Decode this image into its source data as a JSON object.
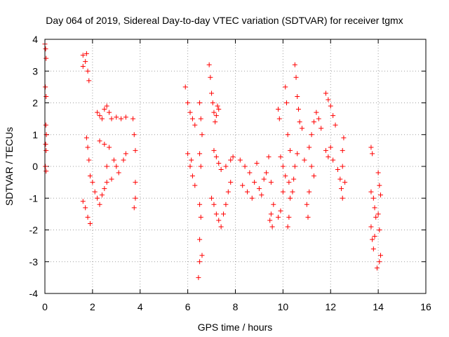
{
  "chart_data": {
    "type": "scatter",
    "title": "Day 064 of 2019, Sidereal Day-to-day VTEC variation (SDTVAR) for receiver tgmx",
    "xlabel": "GPS time / hours",
    "ylabel": "SDTVAR / TECUs",
    "xlim": [
      0,
      16
    ],
    "ylim": [
      -4,
      4
    ],
    "x_ticks": [
      0,
      2,
      4,
      6,
      8,
      10,
      12,
      14,
      16
    ],
    "y_ticks": [
      -4,
      -3,
      -2,
      -1,
      0,
      1,
      2,
      3,
      4
    ],
    "grid": true,
    "marker": "+",
    "color": "#ff0000",
    "series": [
      {
        "name": "SDTVAR",
        "points": [
          [
            0.0,
            3.85
          ],
          [
            0.03,
            3.7
          ],
          [
            0.05,
            3.4
          ],
          [
            0.02,
            2.5
          ],
          [
            0.05,
            2.2
          ],
          [
            0.04,
            1.3
          ],
          [
            0.06,
            1.0
          ],
          [
            0.03,
            0.7
          ],
          [
            0.05,
            0.5
          ],
          [
            0.02,
            0.0
          ],
          [
            0.05,
            -0.15
          ],
          [
            1.6,
            3.5
          ],
          [
            1.7,
            3.3
          ],
          [
            1.8,
            3.0
          ],
          [
            1.85,
            2.7
          ],
          [
            1.6,
            3.15
          ],
          [
            1.75,
            3.55
          ],
          [
            1.6,
            -1.1
          ],
          [
            1.7,
            -1.3
          ],
          [
            1.8,
            -1.6
          ],
          [
            1.9,
            -1.8
          ],
          [
            1.75,
            0.9
          ],
          [
            1.8,
            0.6
          ],
          [
            1.85,
            0.2
          ],
          [
            1.9,
            -0.3
          ],
          [
            2.0,
            -0.5
          ],
          [
            2.1,
            -0.8
          ],
          [
            2.2,
            -1.0
          ],
          [
            2.3,
            -1.2
          ],
          [
            2.4,
            -0.9
          ],
          [
            2.5,
            -0.7
          ],
          [
            2.6,
            -0.5
          ],
          [
            2.2,
            1.7
          ],
          [
            2.3,
            1.6
          ],
          [
            2.4,
            1.5
          ],
          [
            2.5,
            1.8
          ],
          [
            2.6,
            1.9
          ],
          [
            2.7,
            1.7
          ],
          [
            2.8,
            1.5
          ],
          [
            3.0,
            1.55
          ],
          [
            3.2,
            1.5
          ],
          [
            3.4,
            1.55
          ],
          [
            2.3,
            0.8
          ],
          [
            2.5,
            0.7
          ],
          [
            2.7,
            0.6
          ],
          [
            2.9,
            0.2
          ],
          [
            3.0,
            0.0
          ],
          [
            3.1,
            -0.2
          ],
          [
            3.3,
            0.2
          ],
          [
            3.4,
            0.4
          ],
          [
            2.6,
            0.0
          ],
          [
            2.8,
            -0.4
          ],
          [
            3.7,
            1.5
          ],
          [
            3.75,
            1.0
          ],
          [
            3.8,
            0.5
          ],
          [
            3.8,
            -0.5
          ],
          [
            3.8,
            -1.0
          ],
          [
            3.75,
            -1.3
          ],
          [
            5.9,
            2.5
          ],
          [
            6.0,
            2.0
          ],
          [
            6.1,
            1.7
          ],
          [
            6.2,
            1.5
          ],
          [
            6.3,
            1.3
          ],
          [
            6.0,
            0.4
          ],
          [
            6.1,
            0.0
          ],
          [
            6.2,
            -0.3
          ],
          [
            6.3,
            -0.6
          ],
          [
            6.15,
            0.2
          ],
          [
            6.5,
            2.0
          ],
          [
            6.55,
            1.5
          ],
          [
            6.6,
            1.0
          ],
          [
            6.5,
            0.4
          ],
          [
            6.55,
            0.0
          ],
          [
            6.5,
            -1.2
          ],
          [
            6.55,
            -1.6
          ],
          [
            6.5,
            -2.3
          ],
          [
            6.6,
            -2.8
          ],
          [
            6.5,
            -3.0
          ],
          [
            6.45,
            -3.5
          ],
          [
            6.9,
            3.2
          ],
          [
            6.95,
            2.8
          ],
          [
            7.0,
            2.3
          ],
          [
            7.05,
            2.0
          ],
          [
            7.1,
            1.7
          ],
          [
            7.2,
            1.6
          ],
          [
            7.3,
            1.8
          ],
          [
            7.15,
            1.4
          ],
          [
            7.25,
            1.9
          ],
          [
            7.0,
            -1.0
          ],
          [
            7.1,
            -1.2
          ],
          [
            7.2,
            -1.5
          ],
          [
            7.3,
            -1.7
          ],
          [
            7.4,
            -1.9
          ],
          [
            7.5,
            -1.5
          ],
          [
            7.6,
            -1.2
          ],
          [
            7.7,
            -0.8
          ],
          [
            7.8,
            -0.5
          ],
          [
            7.1,
            0.5
          ],
          [
            7.2,
            0.3
          ],
          [
            7.3,
            0.1
          ],
          [
            7.4,
            -0.1
          ],
          [
            7.6,
            0.0
          ],
          [
            7.8,
            0.2
          ],
          [
            7.9,
            0.3
          ],
          [
            8.2,
            0.2
          ],
          [
            8.4,
            0.0
          ],
          [
            8.6,
            -0.2
          ],
          [
            8.8,
            -0.5
          ],
          [
            9.0,
            -0.7
          ],
          [
            9.2,
            -0.4
          ],
          [
            8.3,
            -0.6
          ],
          [
            8.5,
            -0.8
          ],
          [
            8.7,
            -1.0
          ],
          [
            9.1,
            -0.9
          ],
          [
            9.3,
            -0.2
          ],
          [
            8.9,
            0.1
          ],
          [
            9.4,
            0.3
          ],
          [
            9.5,
            -0.5
          ],
          [
            9.5,
            -1.5
          ],
          [
            9.55,
            -1.9
          ],
          [
            9.45,
            -1.7
          ],
          [
            9.6,
            -1.2
          ],
          [
            9.8,
            1.8
          ],
          [
            9.85,
            1.5
          ],
          [
            9.9,
            0.3
          ],
          [
            10.0,
            0.0
          ],
          [
            10.1,
            -0.3
          ],
          [
            10.0,
            -0.8
          ],
          [
            9.9,
            -1.4
          ],
          [
            9.8,
            -1.6
          ],
          [
            10.1,
            2.5
          ],
          [
            10.15,
            2.0
          ],
          [
            10.2,
            1.0
          ],
          [
            10.3,
            0.5
          ],
          [
            10.25,
            -0.5
          ],
          [
            10.3,
            -1.0
          ],
          [
            10.25,
            -1.6
          ],
          [
            10.2,
            -1.9
          ],
          [
            10.5,
            3.2
          ],
          [
            10.55,
            2.8
          ],
          [
            10.6,
            2.2
          ],
          [
            10.65,
            1.8
          ],
          [
            10.7,
            1.4
          ],
          [
            10.8,
            1.2
          ],
          [
            10.5,
            0.0
          ],
          [
            10.45,
            -0.4
          ],
          [
            10.4,
            -0.8
          ],
          [
            10.6,
            0.4
          ],
          [
            10.9,
            0.2
          ],
          [
            11.1,
            0.6
          ],
          [
            11.2,
            1.0
          ],
          [
            11.3,
            1.4
          ],
          [
            11.4,
            1.7
          ],
          [
            11.5,
            1.5
          ],
          [
            11.6,
            1.2
          ],
          [
            11.2,
            0.0
          ],
          [
            11.3,
            -0.3
          ],
          [
            11.1,
            -0.8
          ],
          [
            11.0,
            -1.2
          ],
          [
            11.05,
            -1.6
          ],
          [
            11.8,
            2.3
          ],
          [
            11.9,
            2.1
          ],
          [
            12.0,
            1.9
          ],
          [
            12.1,
            1.6
          ],
          [
            12.2,
            1.3
          ],
          [
            11.8,
            0.5
          ],
          [
            11.9,
            0.3
          ],
          [
            12.0,
            0.6
          ],
          [
            12.1,
            0.2
          ],
          [
            12.3,
            -0.1
          ],
          [
            12.4,
            -0.4
          ],
          [
            12.5,
            0.5
          ],
          [
            12.55,
            0.9
          ],
          [
            12.5,
            0.0
          ],
          [
            12.6,
            -0.5
          ],
          [
            12.5,
            -1.0
          ],
          [
            12.45,
            -0.7
          ],
          [
            13.7,
            0.6
          ],
          [
            13.75,
            0.4
          ],
          [
            13.7,
            -0.8
          ],
          [
            13.8,
            -1.0
          ],
          [
            13.85,
            -1.3
          ],
          [
            13.9,
            -1.6
          ],
          [
            13.7,
            -1.9
          ],
          [
            13.75,
            -2.3
          ],
          [
            13.8,
            -2.6
          ],
          [
            13.85,
            -2.2
          ],
          [
            14.0,
            -0.2
          ],
          [
            14.05,
            -0.6
          ],
          [
            14.1,
            -0.9
          ],
          [
            14.0,
            -1.5
          ],
          [
            14.05,
            -2.0
          ],
          [
            14.1,
            -2.8
          ],
          [
            14.05,
            -3.0
          ],
          [
            13.95,
            -3.2
          ]
        ]
      }
    ]
  }
}
